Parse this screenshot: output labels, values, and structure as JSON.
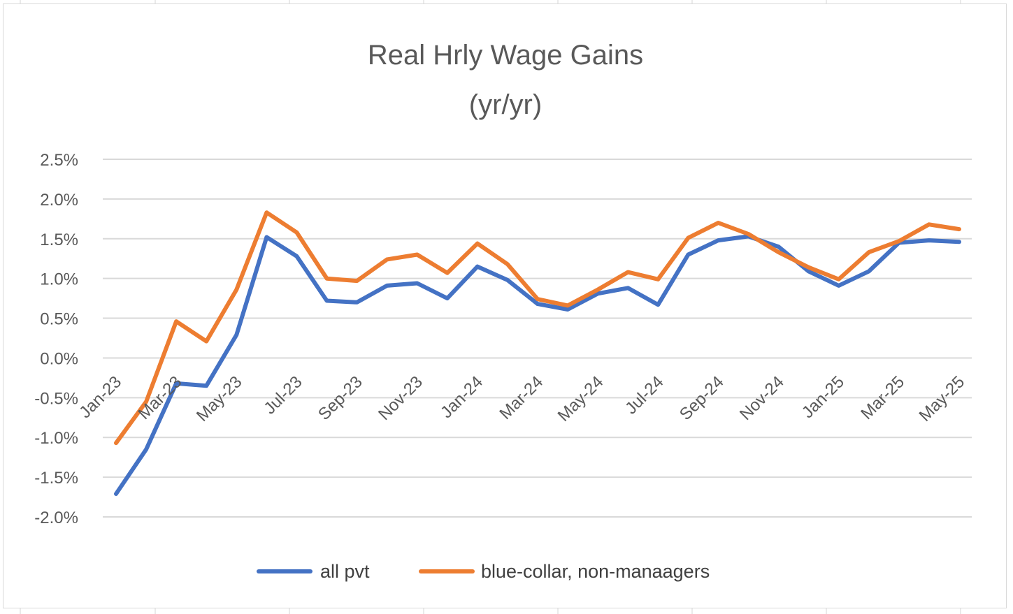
{
  "chart_data": {
    "type": "line",
    "title": "Real Hrly Wage Gains",
    "subtitle": "(yr/yr)",
    "xlabel": "",
    "ylabel": "",
    "ylim": [
      -2.0,
      2.5
    ],
    "y_tick_labels": [
      "-2.0%",
      "-1.5%",
      "-1.0%",
      "-0.5%",
      "0.0%",
      "0.5%",
      "1.0%",
      "1.5%",
      "2.0%",
      "2.5%"
    ],
    "x": [
      "Jan-23",
      "Feb-23",
      "Mar-23",
      "Apr-23",
      "May-23",
      "Jun-23",
      "Jul-23",
      "Aug-23",
      "Sep-23",
      "Oct-23",
      "Nov-23",
      "Dec-23",
      "Jan-24",
      "Feb-24",
      "Mar-24",
      "Apr-24",
      "May-24",
      "Jun-24",
      "Jul-24",
      "Aug-24",
      "Sep-24",
      "Oct-24",
      "Nov-24",
      "Dec-24",
      "Jan-25",
      "Feb-25",
      "Mar-25",
      "Apr-25",
      "May-25"
    ],
    "x_tick_labels": [
      "Jan-23",
      "Mar-23",
      "May-23",
      "Jul-23",
      "Sep-23",
      "Nov-23",
      "Jan-24",
      "Mar-24",
      "May-24",
      "Jul-24",
      "Sep-24",
      "Nov-24",
      "Jan-25",
      "Mar-25",
      "May-25"
    ],
    "grid": true,
    "legend_position": "bottom",
    "series": [
      {
        "name": "all pvt",
        "color": "#4472c4",
        "values": [
          -1.71,
          -1.15,
          -0.32,
          -0.35,
          0.29,
          1.52,
          1.28,
          0.72,
          0.7,
          0.91,
          0.94,
          0.75,
          1.15,
          0.98,
          0.68,
          0.61,
          0.81,
          0.88,
          0.67,
          1.3,
          1.48,
          1.53,
          1.4,
          1.09,
          0.91,
          1.09,
          1.45,
          1.48,
          1.46
        ]
      },
      {
        "name": "blue-collar, non-manaagers",
        "color": "#ed7d31",
        "values": [
          -1.07,
          -0.55,
          0.46,
          0.21,
          0.86,
          1.83,
          1.58,
          1.0,
          0.97,
          1.24,
          1.3,
          1.07,
          1.44,
          1.18,
          0.74,
          0.66,
          0.86,
          1.08,
          0.99,
          1.51,
          1.7,
          1.56,
          1.33,
          1.14,
          0.99,
          1.33,
          1.47,
          1.68,
          1.62
        ]
      }
    ]
  }
}
